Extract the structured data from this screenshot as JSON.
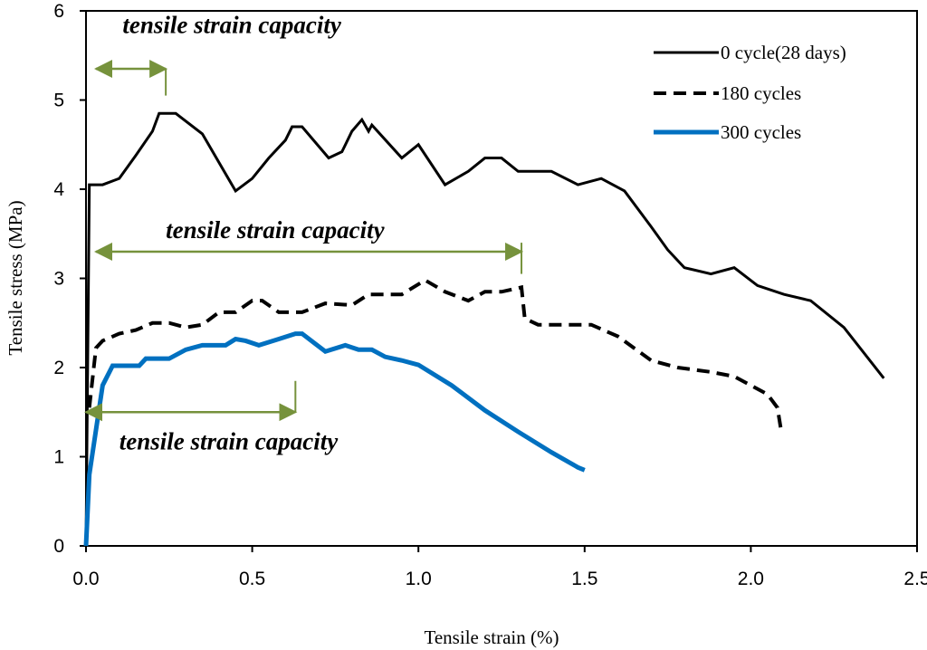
{
  "chart_data": {
    "type": "line",
    "title": "",
    "xlabel": "Tensile strain (%)",
    "ylabel": "Tensile stress (MPa)",
    "xlim": [
      0,
      2.5
    ],
    "ylim": [
      0,
      6
    ],
    "xticks": [
      0,
      0.5,
      1,
      1.5,
      2,
      2.5
    ],
    "xtick_labels": [
      "0.0",
      "0.5",
      "1.0",
      "1.5",
      "2.0",
      "2.5"
    ],
    "yticks": [
      0,
      1,
      2,
      3,
      4,
      5,
      6
    ],
    "ytick_labels": [
      "0",
      "1",
      "2",
      "3",
      "4",
      "5",
      "6"
    ],
    "grid": false,
    "legend_position": "top-right",
    "series": [
      {
        "name": "0 cycle(28 days)",
        "style": "solid",
        "color": "#000000",
        "points": [
          [
            0,
            0.0
          ],
          [
            0.01,
            4.05
          ],
          [
            0.05,
            4.05
          ],
          [
            0.1,
            4.12
          ],
          [
            0.15,
            4.38
          ],
          [
            0.2,
            4.65
          ],
          [
            0.22,
            4.85
          ],
          [
            0.27,
            4.85
          ],
          [
            0.35,
            4.62
          ],
          [
            0.45,
            3.98
          ],
          [
            0.5,
            4.12
          ],
          [
            0.55,
            4.35
          ],
          [
            0.6,
            4.55
          ],
          [
            0.62,
            4.7
          ],
          [
            0.65,
            4.7
          ],
          [
            0.73,
            4.35
          ],
          [
            0.77,
            4.42
          ],
          [
            0.8,
            4.65
          ],
          [
            0.83,
            4.78
          ],
          [
            0.85,
            4.65
          ],
          [
            0.86,
            4.72
          ],
          [
            0.95,
            4.35
          ],
          [
            1.0,
            4.5
          ],
          [
            1.08,
            4.05
          ],
          [
            1.15,
            4.2
          ],
          [
            1.2,
            4.35
          ],
          [
            1.25,
            4.35
          ],
          [
            1.3,
            4.2
          ],
          [
            1.35,
            4.2
          ],
          [
            1.4,
            4.2
          ],
          [
            1.48,
            4.05
          ],
          [
            1.55,
            4.12
          ],
          [
            1.62,
            3.98
          ],
          [
            1.7,
            3.58
          ],
          [
            1.75,
            3.32
          ],
          [
            1.8,
            3.12
          ],
          [
            1.88,
            3.05
          ],
          [
            1.95,
            3.12
          ],
          [
            2.02,
            2.92
          ],
          [
            2.1,
            2.82
          ],
          [
            2.18,
            2.75
          ],
          [
            2.28,
            2.45
          ],
          [
            2.4,
            1.88
          ]
        ]
      },
      {
        "name": "180 cycles",
        "style": "dashed",
        "color": "#000000",
        "points": [
          [
            0.01,
            1.55
          ],
          [
            0.03,
            2.22
          ],
          [
            0.05,
            2.3
          ],
          [
            0.1,
            2.38
          ],
          [
            0.15,
            2.42
          ],
          [
            0.2,
            2.5
          ],
          [
            0.25,
            2.5
          ],
          [
            0.3,
            2.45
          ],
          [
            0.35,
            2.48
          ],
          [
            0.4,
            2.62
          ],
          [
            0.45,
            2.62
          ],
          [
            0.5,
            2.75
          ],
          [
            0.53,
            2.75
          ],
          [
            0.58,
            2.62
          ],
          [
            0.65,
            2.62
          ],
          [
            0.72,
            2.72
          ],
          [
            0.8,
            2.7
          ],
          [
            0.85,
            2.82
          ],
          [
            0.95,
            2.82
          ],
          [
            1.02,
            2.98
          ],
          [
            1.08,
            2.85
          ],
          [
            1.15,
            2.75
          ],
          [
            1.2,
            2.85
          ],
          [
            1.25,
            2.85
          ],
          [
            1.31,
            2.9
          ],
          [
            1.32,
            2.55
          ],
          [
            1.36,
            2.48
          ],
          [
            1.45,
            2.48
          ],
          [
            1.52,
            2.48
          ],
          [
            1.6,
            2.35
          ],
          [
            1.7,
            2.08
          ],
          [
            1.78,
            2.0
          ],
          [
            1.88,
            1.95
          ],
          [
            1.95,
            1.9
          ],
          [
            2.05,
            1.7
          ],
          [
            2.08,
            1.55
          ],
          [
            2.09,
            1.32
          ]
        ]
      },
      {
        "name": "300 cycles",
        "style": "solid",
        "color": "#0070C0",
        "points": [
          [
            0.0,
            0.0
          ],
          [
            0.01,
            0.8
          ],
          [
            0.03,
            1.3
          ],
          [
            0.05,
            1.8
          ],
          [
            0.08,
            2.02
          ],
          [
            0.12,
            2.02
          ],
          [
            0.16,
            2.02
          ],
          [
            0.18,
            2.1
          ],
          [
            0.2,
            2.1
          ],
          [
            0.25,
            2.1
          ],
          [
            0.3,
            2.2
          ],
          [
            0.35,
            2.25
          ],
          [
            0.42,
            2.25
          ],
          [
            0.45,
            2.32
          ],
          [
            0.48,
            2.3
          ],
          [
            0.52,
            2.25
          ],
          [
            0.58,
            2.32
          ],
          [
            0.63,
            2.38
          ],
          [
            0.65,
            2.38
          ],
          [
            0.72,
            2.18
          ],
          [
            0.78,
            2.25
          ],
          [
            0.82,
            2.2
          ],
          [
            0.86,
            2.2
          ],
          [
            0.9,
            2.12
          ],
          [
            0.95,
            2.08
          ],
          [
            1.0,
            2.03
          ],
          [
            1.1,
            1.8
          ],
          [
            1.2,
            1.52
          ],
          [
            1.3,
            1.28
          ],
          [
            1.4,
            1.05
          ],
          [
            1.48,
            0.88
          ],
          [
            1.5,
            0.85
          ]
        ]
      }
    ],
    "annotations": [
      {
        "text": "tensile strain capacity",
        "text_anchor": [
          0.11,
          5.75
        ],
        "x_start": 0.03,
        "x_end": 0.24,
        "y": 5.35,
        "end_tick_top": 5.35,
        "end_tick_bottom": 5.05
      },
      {
        "text": "tensile strain capacity",
        "text_anchor": [
          0.24,
          3.45
        ],
        "x_start": 0.03,
        "x_end": 1.31,
        "y": 3.3,
        "end_tick_top": 3.4,
        "end_tick_bottom": 3.05
      },
      {
        "text": "tensile strain capacity",
        "text_anchor": [
          0.1,
          1.08
        ],
        "x_start": 0.0,
        "x_end": 0.63,
        "y": 1.5,
        "end_tick_top": 1.85,
        "end_tick_bottom": 1.5
      }
    ],
    "annotation_color": "#76923C"
  }
}
